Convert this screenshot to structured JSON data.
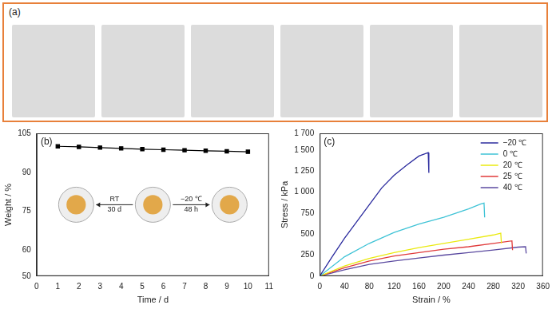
{
  "panel_a": {
    "label": "(a)"
  },
  "chart_data": [
    {
      "type": "line",
      "label": "(b)",
      "x_label": "Time / d",
      "y_label": "Weight / %",
      "x": [
        1,
        2,
        3,
        4,
        5,
        6,
        7,
        8,
        9,
        10
      ],
      "values": [
        100,
        99.8,
        99.5,
        99.2,
        98.9,
        98.7,
        98.5,
        98.3,
        98.1,
        97.9
      ],
      "color": "#000000",
      "marker": "square",
      "xlim": [
        0,
        11
      ],
      "xticks": [
        0,
        1,
        2,
        3,
        4,
        5,
        6,
        7,
        8,
        9,
        10,
        11
      ],
      "ylim": [
        50,
        105
      ],
      "yticks": [
        50,
        60,
        75,
        90,
        105
      ],
      "grid": false,
      "annotations": [
        "RT",
        "30 d",
        "−20 ℃",
        "48 h"
      ]
    },
    {
      "type": "line",
      "label": "(c)",
      "x_label": "Strain / %",
      "y_label": "Stress / kPa",
      "series": [
        {
          "name": "−20 ℃",
          "color": "#2b2b9e",
          "x": [
            0,
            20,
            40,
            60,
            80,
            100,
            120,
            140,
            160,
            175,
            176
          ],
          "values": [
            0,
            230,
            450,
            650,
            850,
            1050,
            1200,
            1320,
            1430,
            1470,
            1230
          ]
        },
        {
          "name": "0 ℃",
          "color": "#3fc3d6",
          "x": [
            0,
            40,
            80,
            120,
            160,
            200,
            240,
            260,
            265,
            266
          ],
          "values": [
            0,
            230,
            390,
            520,
            620,
            700,
            800,
            860,
            870,
            700
          ]
        },
        {
          "name": "20 ℃",
          "color": "#eaea10",
          "x": [
            0,
            40,
            80,
            120,
            160,
            200,
            240,
            280,
            292,
            293
          ],
          "values": [
            0,
            120,
            210,
            280,
            340,
            390,
            440,
            490,
            510,
            390
          ]
        },
        {
          "name": "25 ℃",
          "color": "#e03a3a",
          "x": [
            0,
            40,
            80,
            120,
            160,
            200,
            240,
            280,
            310,
            311
          ],
          "values": [
            0,
            100,
            180,
            240,
            280,
            320,
            350,
            390,
            420,
            310
          ]
        },
        {
          "name": "40 ℃",
          "color": "#5b4aa0",
          "x": [
            0,
            40,
            80,
            120,
            160,
            200,
            240,
            280,
            320,
            332,
            333
          ],
          "values": [
            0,
            75,
            140,
            180,
            215,
            250,
            280,
            310,
            345,
            350,
            270
          ]
        }
      ],
      "xlim": [
        0,
        360
      ],
      "xticks": [
        0,
        40,
        80,
        120,
        160,
        200,
        240,
        280,
        320,
        360
      ],
      "ylim": [
        0,
        1700
      ],
      "yticks": [
        0,
        250,
        500,
        750,
        {
          "value": 1000,
          "label": "1 000"
        },
        {
          "value": 1250,
          "label": "1 250"
        },
        {
          "value": 1500,
          "label": "1 500"
        },
        {
          "value": 1700,
          "label": "1 700"
        }
      ],
      "grid": false,
      "legend": "top-right"
    }
  ]
}
